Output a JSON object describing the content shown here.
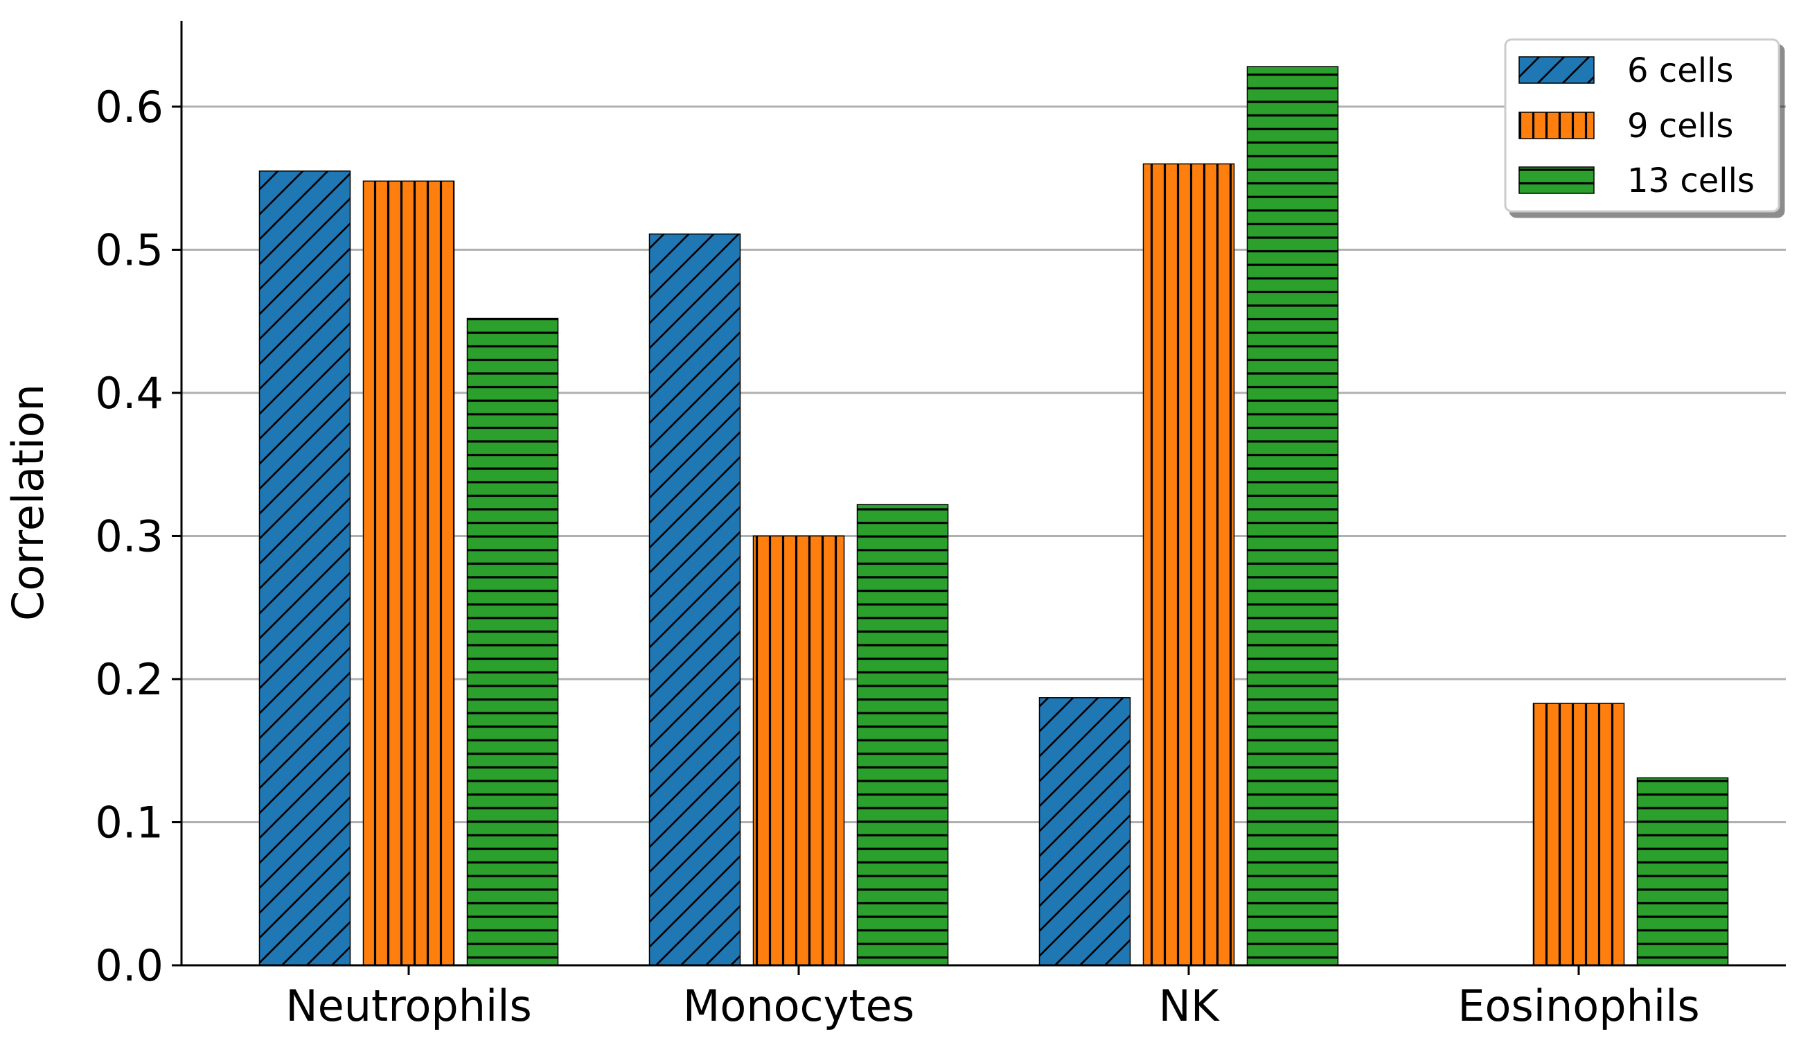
{
  "chart_data": {
    "type": "bar",
    "title": "",
    "xlabel": "",
    "ylabel": "Correlation",
    "categories": [
      "Neutrophils",
      "Monocytes",
      "NK",
      "Eosinophils"
    ],
    "series": [
      {
        "name": "6 cells",
        "color": "#1f77b4",
        "hatch": "diagonal",
        "values": [
          0.555,
          0.511,
          0.187,
          null
        ]
      },
      {
        "name": "9 cells",
        "color": "#ff7f0e",
        "hatch": "vertical",
        "values": [
          0.548,
          0.3,
          0.56,
          0.183
        ]
      },
      {
        "name": "13 cells",
        "color": "#2ca02c",
        "hatch": "horizontal",
        "values": [
          0.452,
          0.322,
          0.628,
          0.131
        ]
      }
    ],
    "ylim": [
      0,
      0.66
    ],
    "yticks": [
      "0.0",
      "0.1",
      "0.2",
      "0.3",
      "0.4",
      "0.5",
      "0.6"
    ],
    "grid": "horizontal",
    "legend": "top-right"
  }
}
